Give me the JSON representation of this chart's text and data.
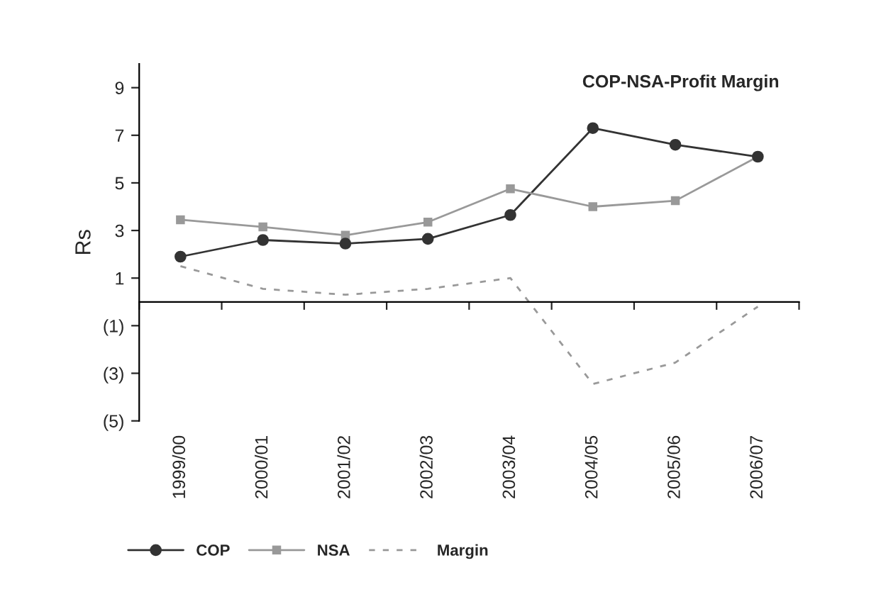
{
  "chart_data": {
    "type": "line",
    "title": "COP-NSA-Profit Margin",
    "ylabel": "Rs",
    "categories": [
      "1999/00",
      "2000/01",
      "2001/02",
      "2002/03",
      "2003/04",
      "2004/05",
      "2005/06",
      "2006/07"
    ],
    "series": [
      {
        "name": "COP",
        "color": "#333333",
        "marker": "circle",
        "line_style": "solid",
        "values": [
          1.9,
          2.6,
          2.45,
          2.65,
          3.65,
          7.3,
          6.6,
          6.1
        ]
      },
      {
        "name": "NSA",
        "color": "#999999",
        "marker": "square",
        "line_style": "solid",
        "values": [
          3.45,
          3.15,
          2.8,
          3.35,
          4.75,
          4.0,
          4.25,
          6.1
        ]
      },
      {
        "name": "Margin",
        "color": "#999999",
        "marker": "none",
        "line_style": "dashed",
        "values": [
          1.5,
          0.55,
          0.3,
          0.55,
          1.0,
          -3.45,
          -2.55,
          -0.2
        ]
      }
    ],
    "ylim": [
      -5,
      10
    ],
    "yticks": [
      {
        "value": -5,
        "label": "(5)"
      },
      {
        "value": -3,
        "label": "(3)"
      },
      {
        "value": -1,
        "label": "(1)"
      },
      1,
      3,
      5,
      7,
      9
    ],
    "grid": false,
    "legend": "bottom"
  }
}
